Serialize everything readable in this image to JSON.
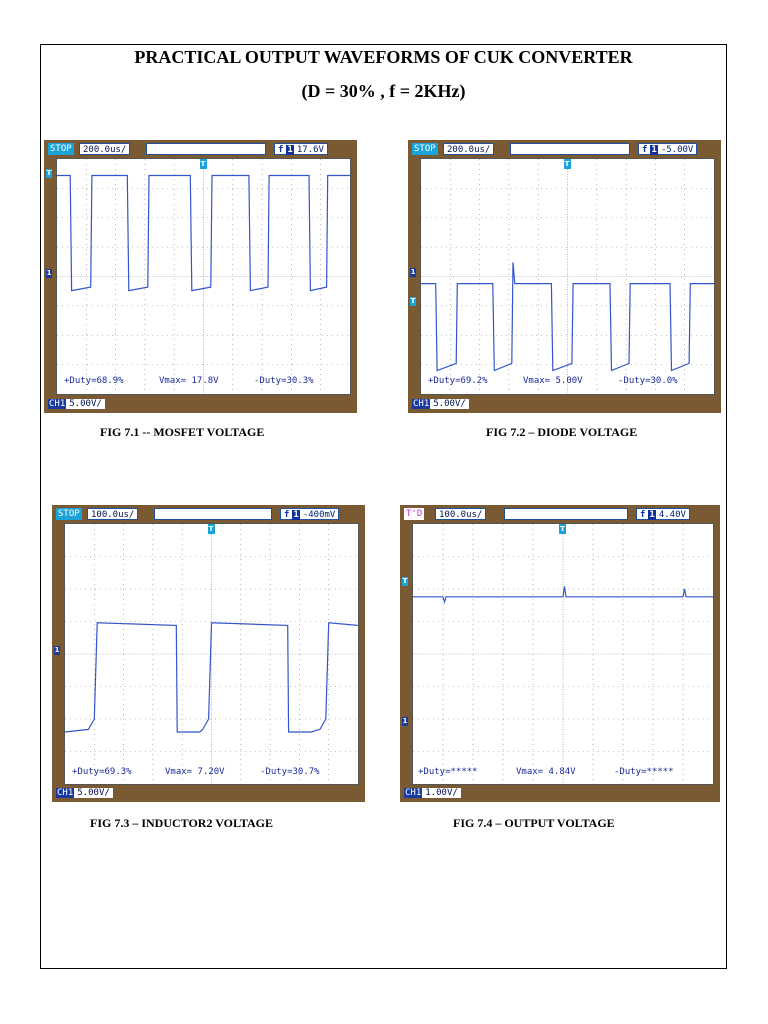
{
  "title": "PRACTICAL OUTPUT WAVEFORMS OF CUK CONVERTER",
  "subtitle": "(D = 30% , f = 2KHz)",
  "figures": [
    {
      "status": "STOP",
      "timebase": "200.0us/",
      "trigger": "17.6V",
      "trigger_edge": "f",
      "trigger_ch": "1",
      "pos_duty": "+Duty=68.9%",
      "vmax": "Vmax= 17.8V",
      "neg_duty": "-Duty=30.3%",
      "channel": "CH1",
      "channel_scale": "5.00V/",
      "marker_t": "T",
      "marker_1": "1",
      "caption": "FIG 7.1 -- MOSFET VOLTAGE"
    },
    {
      "status": "STOP",
      "timebase": "200.0us/",
      "trigger": "-5.00V",
      "trigger_edge": "f",
      "trigger_ch": "1",
      "pos_duty": "+Duty=69.2%",
      "vmax": "Vmax= 5.00V",
      "neg_duty": "-Duty=30.0%",
      "channel": "CH1",
      "channel_scale": "5.00V/",
      "marker_t": "T",
      "marker_1": "1",
      "caption": "FIG 7.2 – DIODE VOLTAGE"
    },
    {
      "status": "STOP",
      "timebase": "100.0us/",
      "trigger": "-400mV",
      "trigger_edge": "f",
      "trigger_ch": "1",
      "pos_duty": "+Duty=69.3%",
      "vmax": "Vmax= 7.20V",
      "neg_duty": "-Duty=30.7%",
      "channel": "CH1",
      "channel_scale": "5.00V/",
      "marker_t": "T",
      "marker_1": "1",
      "caption": "FIG 7.3 – INDUCTOR2 VOLTAGE"
    },
    {
      "status": "T'D",
      "timebase": "100.0us/",
      "trigger": "4.40V",
      "trigger_edge": "f",
      "trigger_ch": "1",
      "pos_duty": "+Duty=*****",
      "vmax": "Vmax= 4.84V",
      "neg_duty": "-Duty=*****",
      "channel": "CH1",
      "channel_scale": "1.00V/",
      "marker_t": "T",
      "marker_1": "1",
      "caption": "FIG 7.4 – OUTPUT VOLTAGE"
    }
  ],
  "colors": {
    "bezel": "#7a5a33",
    "trace": "#3355cc",
    "status": "#1aa3d9"
  }
}
